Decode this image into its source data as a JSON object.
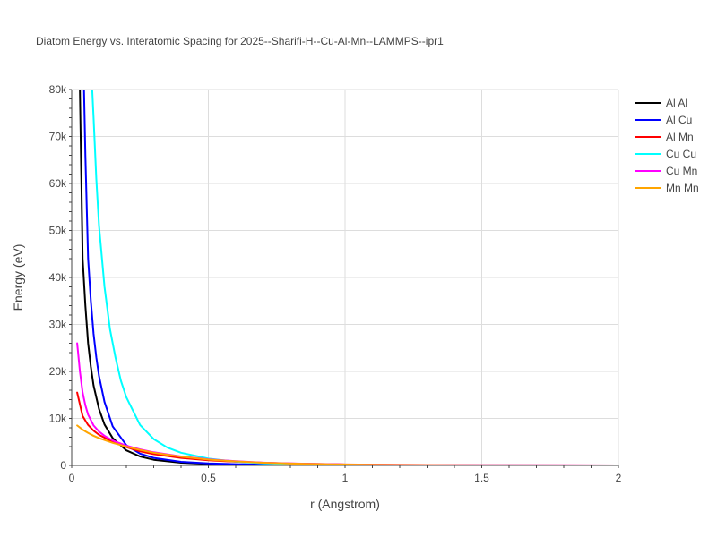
{
  "chart_data": {
    "type": "line",
    "title": "Diatom Energy vs. Interatomic Spacing for 2025--Sharifi-H--Cu-Al-Mn--LAMMPS--ipr1",
    "xlabel": "r (Angstrom)",
    "ylabel": "Energy (eV)",
    "xlim": [
      0,
      2
    ],
    "ylim": [
      0,
      80000
    ],
    "xticks": [
      0,
      0.5,
      1,
      1.5,
      2
    ],
    "xtick_labels": [
      "0",
      "0.5",
      "1",
      "1.5",
      "2"
    ],
    "yticks": [
      0,
      10000,
      20000,
      30000,
      40000,
      50000,
      60000,
      70000,
      80000
    ],
    "ytick_labels": [
      "0",
      "10k",
      "20k",
      "30k",
      "40k",
      "50k",
      "60k",
      "70k",
      "80k"
    ],
    "grid": true,
    "legend_position": "top-right",
    "series": [
      {
        "name": "Al Al",
        "color": "#000000",
        "x": [
          0.03,
          0.04,
          0.05,
          0.06,
          0.07,
          0.08,
          0.1,
          0.12,
          0.15,
          0.2,
          0.25,
          0.3,
          0.4,
          0.5,
          0.6,
          0.7,
          0.8,
          1.0,
          1.5,
          2.0
        ],
        "y": [
          80000,
          44000,
          34000,
          26000,
          21000,
          17000,
          12000,
          8700,
          5800,
          3200,
          1900,
          1200,
          560,
          310,
          190,
          120,
          80,
          40,
          10,
          0
        ]
      },
      {
        "name": "Al Cu",
        "color": "#0000ff",
        "x": [
          0.045,
          0.05,
          0.06,
          0.07,
          0.08,
          0.09,
          0.1,
          0.12,
          0.15,
          0.2,
          0.25,
          0.3,
          0.4,
          0.5,
          0.6,
          0.7,
          0.8,
          1.0,
          1.5,
          2.0
        ],
        "y": [
          80000,
          66000,
          44000,
          35000,
          28000,
          23000,
          19000,
          13500,
          8300,
          4300,
          2500,
          1600,
          760,
          420,
          260,
          170,
          110,
          50,
          12,
          0
        ]
      },
      {
        "name": "Al Mn",
        "color": "#ff0000",
        "x": [
          0.02,
          0.04,
          0.06,
          0.08,
          0.1,
          0.15,
          0.2,
          0.25,
          0.3,
          0.4,
          0.5,
          0.6,
          0.7,
          0.8,
          1.0,
          1.2,
          1.5,
          2.0
        ],
        "y": [
          15500,
          10500,
          8600,
          7400,
          6500,
          5000,
          3900,
          3000,
          2400,
          1600,
          1100,
          780,
          560,
          400,
          220,
          120,
          50,
          0
        ]
      },
      {
        "name": "Cu Cu",
        "color": "#00ffff",
        "x": [
          0.075,
          0.08,
          0.09,
          0.1,
          0.12,
          0.14,
          0.16,
          0.18,
          0.2,
          0.25,
          0.3,
          0.35,
          0.4,
          0.5,
          0.6,
          0.7,
          0.8,
          1.0,
          1.5,
          2.0
        ],
        "y": [
          80000,
          74000,
          61000,
          51000,
          38000,
          29000,
          23000,
          18000,
          14500,
          8600,
          5600,
          3800,
          2700,
          1450,
          800,
          460,
          280,
          110,
          15,
          0
        ]
      },
      {
        "name": "Cu Mn",
        "color": "#ff00ff",
        "x": [
          0.02,
          0.03,
          0.04,
          0.05,
          0.06,
          0.08,
          0.1,
          0.12,
          0.15,
          0.2,
          0.25,
          0.3,
          0.4,
          0.5,
          0.6,
          0.7,
          0.8,
          1.0,
          1.5,
          2.0
        ],
        "y": [
          26000,
          20000,
          15500,
          12800,
          10800,
          8500,
          7200,
          6300,
          5300,
          4200,
          3400,
          2800,
          1900,
          1300,
          900,
          600,
          420,
          200,
          40,
          0
        ]
      },
      {
        "name": "Mn Mn",
        "color": "#ffa500",
        "x": [
          0.02,
          0.04,
          0.06,
          0.08,
          0.1,
          0.15,
          0.2,
          0.25,
          0.3,
          0.4,
          0.5,
          0.6,
          0.7,
          0.8,
          1.0,
          1.2,
          1.5,
          2.0
        ],
        "y": [
          8500,
          7600,
          6900,
          6300,
          5800,
          4800,
          4000,
          3300,
          2700,
          1850,
          1250,
          850,
          580,
          400,
          190,
          90,
          30,
          0
        ]
      }
    ]
  }
}
